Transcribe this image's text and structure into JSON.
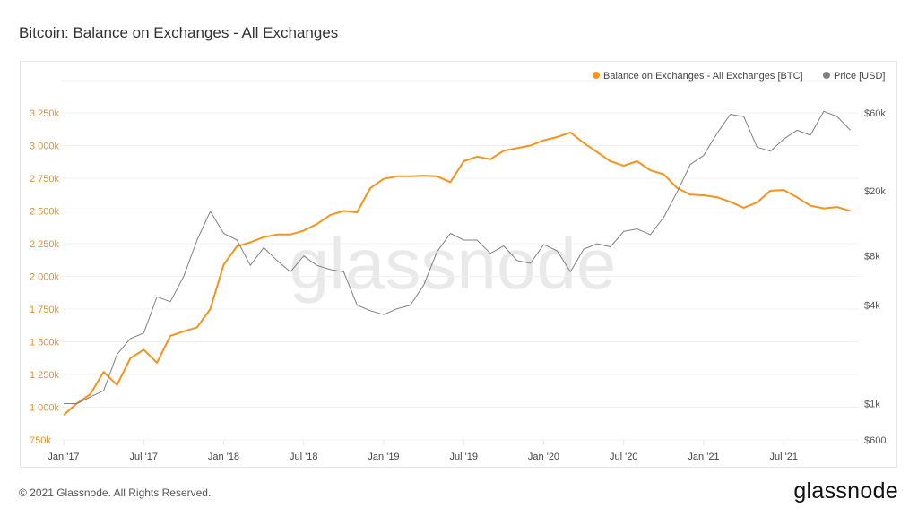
{
  "title": "Bitcoin: Balance on Exchanges - All Exchanges",
  "footer": "© 2021 Glassnode. All Rights Reserved.",
  "logo": "glassnode",
  "watermark": "glassnode",
  "colors": {
    "balance": "#f7931a",
    "price": "#808080",
    "left_axis": "#e0912f",
    "grid": "#f0f0f0"
  },
  "chart_data": {
    "type": "line",
    "title": "Bitcoin: Balance on Exchanges - All Exchanges",
    "legend_position": "top-right",
    "grid": true,
    "x_ticks": [
      "Jan '17",
      "Jul '17",
      "Jan '18",
      "Jul '18",
      "Jan '19",
      "Jul '19",
      "Jan '20",
      "Jul '20",
      "Jan '21",
      "Jul '21"
    ],
    "y_left": {
      "ticks": [
        "3 250k",
        "3 000k",
        "2 750k",
        "2 500k",
        "2 250k",
        "2 000k",
        "1 750k",
        "1 500k",
        "1 250k",
        "1 000k",
        "750k"
      ],
      "range": [
        750000,
        3250000
      ]
    },
    "y_right": {
      "scale": "log",
      "ticks": [
        {
          "label": "$60k",
          "value": 60000
        },
        {
          "label": "$20k",
          "value": 20000
        },
        {
          "label": "$8k",
          "value": 8000
        },
        {
          "label": "$4k",
          "value": 4000
        },
        {
          "label": "$1k",
          "value": 1000
        },
        {
          "label": "$600",
          "value": 600
        }
      ],
      "range": [
        600,
        60000
      ]
    },
    "x": [
      "2017-01",
      "2017-02",
      "2017-03",
      "2017-04",
      "2017-05",
      "2017-06",
      "2017-07",
      "2017-08",
      "2017-09",
      "2017-10",
      "2017-11",
      "2017-12",
      "2018-01",
      "2018-02",
      "2018-03",
      "2018-04",
      "2018-05",
      "2018-06",
      "2018-07",
      "2018-08",
      "2018-09",
      "2018-10",
      "2018-11",
      "2018-12",
      "2019-01",
      "2019-02",
      "2019-03",
      "2019-04",
      "2019-05",
      "2019-06",
      "2019-07",
      "2019-08",
      "2019-09",
      "2019-10",
      "2019-11",
      "2019-12",
      "2020-01",
      "2020-02",
      "2020-03",
      "2020-04",
      "2020-05",
      "2020-06",
      "2020-07",
      "2020-08",
      "2020-09",
      "2020-10",
      "2020-11",
      "2020-12",
      "2021-01",
      "2021-02",
      "2021-03",
      "2021-04",
      "2021-05",
      "2021-06",
      "2021-07",
      "2021-08",
      "2021-09",
      "2021-10",
      "2021-11",
      "2021-12"
    ],
    "series": [
      {
        "name": "Balance on Exchanges - All Exchanges [BTC]",
        "axis": "left",
        "values": [
          940000,
          1030000,
          1100000,
          1270000,
          1170000,
          1375000,
          1440000,
          1340000,
          1545000,
          1580000,
          1610000,
          1750000,
          2090000,
          2230000,
          2260000,
          2300000,
          2320000,
          2320000,
          2350000,
          2400000,
          2470000,
          2500000,
          2490000,
          2675000,
          2745000,
          2765000,
          2765000,
          2770000,
          2765000,
          2720000,
          2880000,
          2915000,
          2895000,
          2960000,
          2980000,
          3000000,
          3040000,
          3065000,
          3100000,
          3020000,
          2950000,
          2880000,
          2845000,
          2880000,
          2810000,
          2780000,
          2675000,
          2625000,
          2620000,
          2605000,
          2570000,
          2525000,
          2565000,
          2655000,
          2660000,
          2605000,
          2540000,
          2520000,
          2530000,
          2500000
        ]
      },
      {
        "name": "Price [USD]",
        "axis": "right",
        "values": [
          1000,
          1000,
          1100,
          1200,
          2000,
          2500,
          2700,
          4500,
          4200,
          6000,
          10000,
          15000,
          11000,
          10000,
          7000,
          9000,
          7500,
          6400,
          8000,
          7000,
          6600,
          6400,
          4000,
          3700,
          3500,
          3800,
          4000,
          5300,
          8500,
          11000,
          10000,
          10000,
          8300,
          9200,
          7500,
          7200,
          9400,
          8600,
          6400,
          8800,
          9500,
          9100,
          11300,
          11700,
          10800,
          13800,
          19700,
          29000,
          33000,
          45000,
          58800,
          57000,
          37000,
          35000,
          41500,
          47000,
          43800,
          61300,
          57000,
          47000
        ]
      }
    ]
  }
}
